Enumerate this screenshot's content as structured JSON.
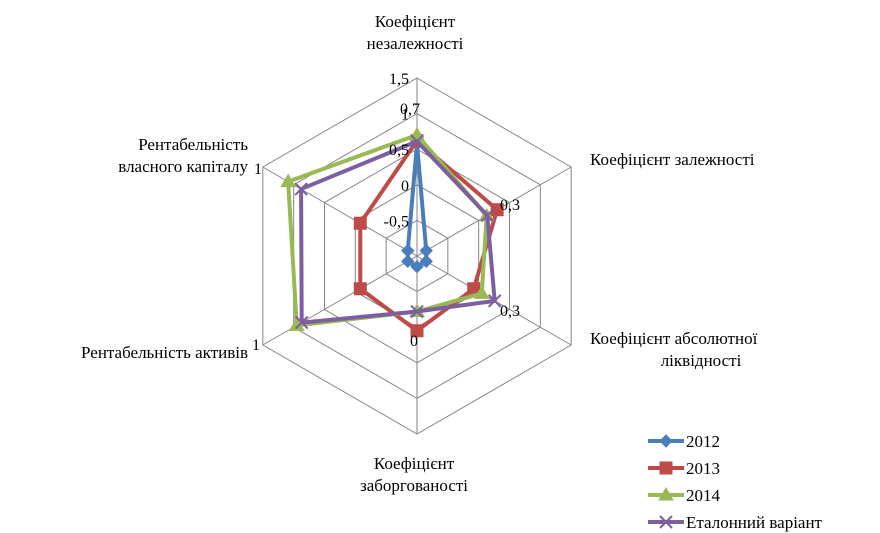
{
  "chart_data": {
    "type": "radar",
    "axes": [
      [
        "Коефіцієнт",
        "незалежності"
      ],
      [
        "Коефіцієнт залежності"
      ],
      [
        "Коефіцієнт абсолютної",
        "ліквідності"
      ],
      [
        "Коефіцієнт",
        "заборгованості"
      ],
      [
        "Рентабельність активів"
      ],
      [
        "Рентабельність",
        "власного капіталу"
      ]
    ],
    "radial_axis": {
      "min": -1,
      "max": 1.5,
      "ticks": [
        "-0,5",
        "0",
        "0,5",
        "1",
        "1,5"
      ],
      "tick_values": [
        -0.5,
        0,
        0.5,
        1,
        1.5
      ]
    },
    "data_labels": [
      "0,7",
      "0,3",
      "0,3",
      "0",
      "1",
      "1"
    ],
    "series": [
      {
        "name": "2012",
        "color": "#4a7ebb",
        "marker": "diamond",
        "values": [
          0.57,
          -0.85,
          -0.85,
          -0.85,
          -0.85,
          -0.85
        ]
      },
      {
        "name": "2013",
        "color": "#be4b48",
        "marker": "square",
        "values": [
          0.62,
          0.3,
          -0.08,
          0.05,
          -0.08,
          -0.08
        ]
      },
      {
        "name": "2014",
        "color": "#98b954",
        "marker": "triangle",
        "values": [
          0.7,
          0.13,
          0.05,
          -0.22,
          0.95,
          1.09
        ]
      },
      {
        "name": "Еталонний варіант",
        "color": "#7d5fa0",
        "marker": "x",
        "values": [
          0.61,
          0.14,
          0.26,
          -0.22,
          0.87,
          0.88
        ]
      }
    ],
    "legend_position": "bottom-right",
    "grid": true
  }
}
